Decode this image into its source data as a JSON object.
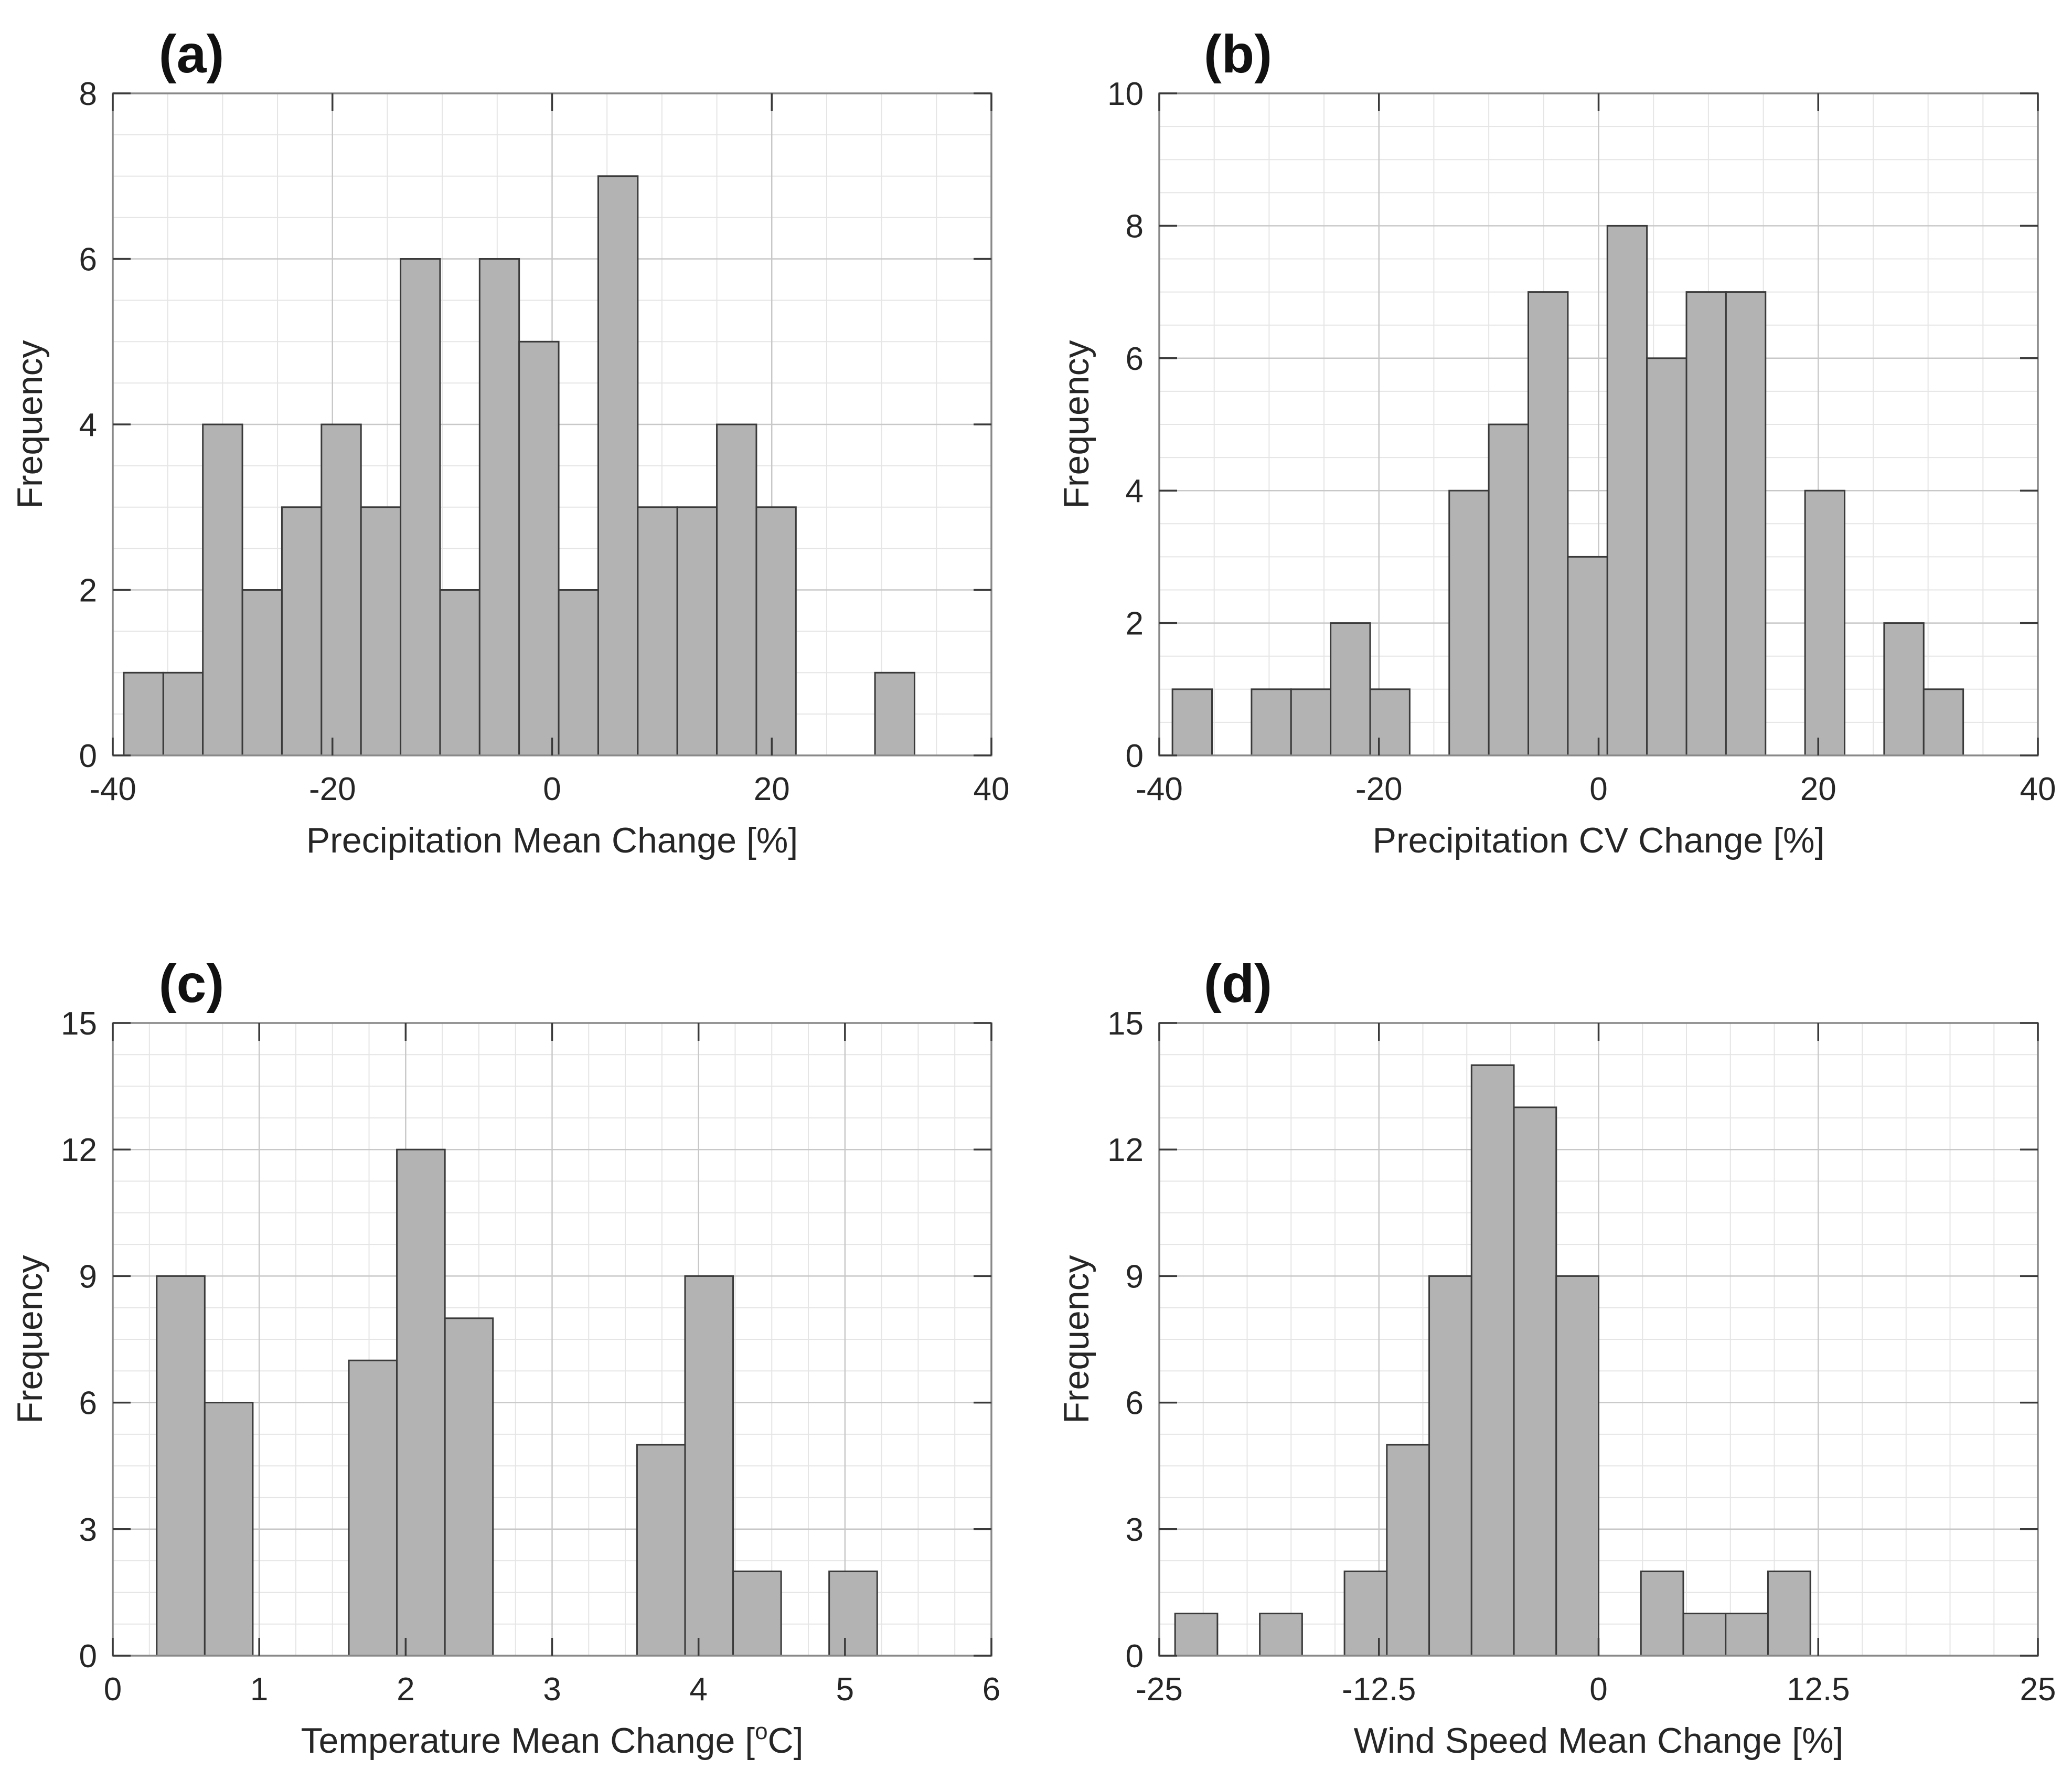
{
  "style": {
    "background": "#ffffff",
    "bar_fill": "#b3b3b3",
    "bar_edge": "#3a3a3a",
    "axis_box_color": "#898989",
    "tick_color": "#3a3a3a",
    "grid_major_color": "#c8c8c8",
    "grid_minor_color": "#e5e5e5",
    "text_color": "#262626",
    "panel_letter_color": "#111111"
  },
  "chart_data": [
    {
      "id": "a",
      "type": "bar",
      "subtype": "histogram",
      "panel_label": "(a)",
      "xlabel": "Precipitation Mean Change [%]",
      "xlabel_parts": [
        {
          "t": "Precipitation Mean Change [%]",
          "sup": false
        }
      ],
      "ylabel": "Frequency",
      "xlim": [
        -40,
        40
      ],
      "ylim": [
        0,
        8
      ],
      "xticks": [
        -40,
        -20,
        0,
        20,
        40
      ],
      "xtick_labels": [
        "-40",
        "-20",
        "0",
        "20",
        "40"
      ],
      "yticks": [
        0,
        2,
        4,
        6,
        8
      ],
      "ytick_labels": [
        "0",
        "2",
        "4",
        "6",
        "8"
      ],
      "x_minor_step": 5,
      "y_minor_step": 0.5,
      "grid": {
        "major": true,
        "minor": true
      },
      "legend": null,
      "bins": {
        "start": -39.0,
        "width": 3.6
      },
      "frequencies": [
        1,
        1,
        4,
        2,
        3,
        4,
        3,
        6,
        2,
        6,
        5,
        2,
        7,
        3,
        3,
        4,
        3,
        0,
        0,
        1
      ]
    },
    {
      "id": "b",
      "type": "bar",
      "subtype": "histogram",
      "panel_label": "(b)",
      "xlabel": "Precipitation CV Change [%]",
      "xlabel_parts": [
        {
          "t": "Precipitation CV Change [%]",
          "sup": false
        }
      ],
      "ylabel": "Frequency",
      "xlim": [
        -40,
        40
      ],
      "ylim": [
        0,
        10
      ],
      "xticks": [
        -40,
        -20,
        0,
        20,
        40
      ],
      "xtick_labels": [
        "-40",
        "-20",
        "0",
        "20",
        "40"
      ],
      "yticks": [
        0,
        2,
        4,
        6,
        8,
        10
      ],
      "ytick_labels": [
        "0",
        "2",
        "4",
        "6",
        "8",
        "10"
      ],
      "x_minor_step": 5,
      "y_minor_step": 0.5,
      "grid": {
        "major": true,
        "minor": true
      },
      "legend": null,
      "bins": {
        "start": -38.8,
        "width": 3.6
      },
      "frequencies": [
        1,
        0,
        1,
        1,
        2,
        1,
        0,
        4,
        5,
        7,
        3,
        8,
        6,
        7,
        7,
        0,
        4,
        0,
        2,
        1
      ]
    },
    {
      "id": "c",
      "type": "bar",
      "subtype": "histogram",
      "panel_label": "(c)",
      "xlabel": "Temperature Mean Change [oC]",
      "xlabel_parts": [
        {
          "t": "Temperature Mean Change [",
          "sup": false
        },
        {
          "t": "o",
          "sup": true
        },
        {
          "t": "C]",
          "sup": false
        }
      ],
      "ylabel": "Frequency",
      "xlim": [
        0,
        6
      ],
      "ylim": [
        0,
        15
      ],
      "xticks": [
        0,
        1,
        2,
        3,
        4,
        5,
        6
      ],
      "xtick_labels": [
        "0",
        "1",
        "2",
        "3",
        "4",
        "5",
        "6"
      ],
      "yticks": [
        0,
        3,
        6,
        9,
        12,
        15
      ],
      "ytick_labels": [
        "0",
        "3",
        "6",
        "9",
        "12",
        "15"
      ],
      "x_minor_step": 0.25,
      "y_minor_step": 0.75,
      "grid": {
        "major": true,
        "minor": true
      },
      "legend": null,
      "bins": {
        "start": 0.3,
        "width": 0.328
      },
      "frequencies": [
        9,
        6,
        0,
        0,
        7,
        12,
        8,
        0,
        0,
        0,
        5,
        9,
        2,
        0,
        2
      ]
    },
    {
      "id": "d",
      "type": "bar",
      "subtype": "histogram",
      "panel_label": "(d)",
      "xlabel": "Wind Speed Mean Change [%]",
      "xlabel_parts": [
        {
          "t": "Wind Speed Mean Change [%]",
          "sup": false
        }
      ],
      "ylabel": "Frequency",
      "xlim": [
        -25,
        25
      ],
      "ylim": [
        0,
        15
      ],
      "xticks": [
        -25,
        -12.5,
        0,
        12.5,
        25
      ],
      "xtick_labels": [
        "-25",
        "-12.5",
        "0",
        "12.5",
        "25"
      ],
      "yticks": [
        0,
        3,
        6,
        9,
        12,
        15
      ],
      "ytick_labels": [
        "0",
        "3",
        "6",
        "9",
        "12",
        "15"
      ],
      "x_minor_step": 2.5,
      "y_minor_step": 0.75,
      "grid": {
        "major": true,
        "minor": true
      },
      "legend": null,
      "bins": {
        "start": -24.1,
        "width": 2.41
      },
      "frequencies": [
        1,
        0,
        1,
        0,
        2,
        5,
        9,
        14,
        13,
        9,
        0,
        2,
        1,
        1,
        2
      ]
    }
  ]
}
